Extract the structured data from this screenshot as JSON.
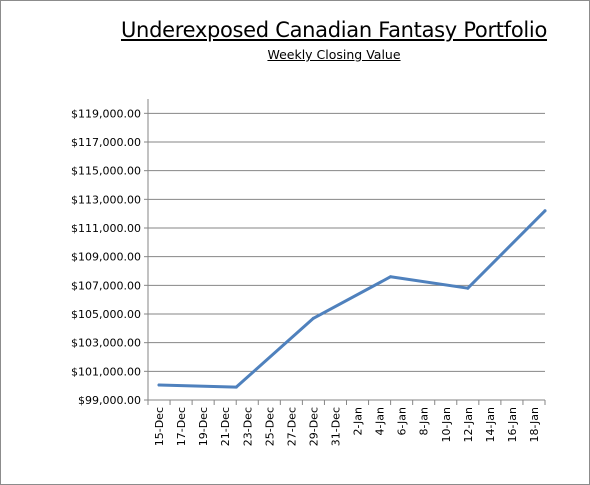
{
  "chart_data": {
    "type": "line",
    "title": "Underexposed Canadian Fantasy Portfolio",
    "subtitle": "Weekly Closing Value",
    "xlabel": "",
    "ylabel": "",
    "x_tick_labels": [
      "15-Dec",
      "17-Dec",
      "19-Dec",
      "21-Dec",
      "23-Dec",
      "25-Dec",
      "27-Dec",
      "29-Dec",
      "31-Dec",
      "2-Jan",
      "4-Jan",
      "6-Jan",
      "8-Jan",
      "10-Jan",
      "12-Jan",
      "14-Jan",
      "16-Jan",
      "18-Jan"
    ],
    "y_tick_labels": [
      "$99,000.00",
      "$101,000.00",
      "$103,000.00",
      "$105,000.00",
      "$107,000.00",
      "$109,000.00",
      "$111,000.00",
      "$113,000.00",
      "$115,000.00",
      "$117,000.00",
      "$119,000.00"
    ],
    "ylim": [
      99000,
      120000
    ],
    "grid": "horizontal",
    "series": [
      {
        "color": "#4f81bd",
        "points": [
          {
            "x": "15-Dec",
            "y": 100050
          },
          {
            "x": "22-Dec",
            "y": 99900
          },
          {
            "x": "29-Dec",
            "y": 104700
          },
          {
            "x": "5-Jan",
            "y": 107600
          },
          {
            "x": "12-Jan",
            "y": 106800
          },
          {
            "x": "19-Jan",
            "y": 112200
          }
        ]
      }
    ]
  }
}
